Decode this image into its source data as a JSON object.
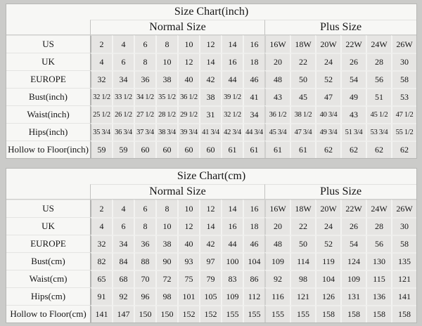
{
  "colors": {
    "page_bg": "#cbcbc9",
    "panel_bg": "#f7f7f5",
    "cell_bg": "#e6e5e3",
    "text": "#151515"
  },
  "layout_labels": {
    "normal_columns": 8,
    "plus_columns": 6
  },
  "tables": [
    {
      "title": "Size Chart(inch)",
      "normal_label": "Normal Size",
      "plus_label": "Plus Size",
      "rows": [
        {
          "label": "US",
          "values": [
            "2",
            "4",
            "6",
            "8",
            "10",
            "12",
            "14",
            "16",
            "16W",
            "18W",
            "20W",
            "22W",
            "24W",
            "26W"
          ]
        },
        {
          "label": "UK",
          "values": [
            "4",
            "6",
            "8",
            "10",
            "12",
            "14",
            "16",
            "18",
            "20",
            "22",
            "24",
            "26",
            "28",
            "30"
          ]
        },
        {
          "label": "EUROPE",
          "values": [
            "32",
            "34",
            "36",
            "38",
            "40",
            "42",
            "44",
            "46",
            "48",
            "50",
            "52",
            "54",
            "56",
            "58"
          ]
        },
        {
          "label": "Bust(inch)",
          "values": [
            "32 1/2",
            "33 1/2",
            "34 1/2",
            "35 1/2",
            "36 1/2",
            "38",
            "39 1/2",
            "41",
            "43",
            "45",
            "47",
            "49",
            "51",
            "53"
          ]
        },
        {
          "label": "Waist(inch)",
          "values": [
            "25 1/2",
            "26 1/2",
            "27 1/2",
            "28 1/2",
            "29 1/2",
            "31",
            "32 1/2",
            "34",
            "36 1/2",
            "38 1/2",
            "40 3/4",
            "43",
            "45 1/2",
            "47 1/2"
          ]
        },
        {
          "label": "Hips(inch)",
          "values": [
            "35 3/4",
            "36 3/4",
            "37 3/4",
            "38 3/4",
            "39 3/4",
            "41 3/4",
            "42 3/4",
            "44 3/4",
            "45 3/4",
            "47 3/4",
            "49 3/4",
            "51 3/4",
            "53 3/4",
            "55 1/2"
          ]
        },
        {
          "label": "Hollow to Floor(inch)",
          "values": [
            "59",
            "59",
            "60",
            "60",
            "60",
            "60",
            "61",
            "61",
            "61",
            "61",
            "62",
            "62",
            "62",
            "62"
          ]
        }
      ]
    },
    {
      "title": "Size Chart(cm)",
      "normal_label": "Normal Size",
      "plus_label": "Plus Size",
      "rows": [
        {
          "label": "US",
          "values": [
            "2",
            "4",
            "6",
            "8",
            "10",
            "12",
            "14",
            "16",
            "16W",
            "18W",
            "20W",
            "22W",
            "24W",
            "26W"
          ]
        },
        {
          "label": "UK",
          "values": [
            "4",
            "6",
            "8",
            "10",
            "12",
            "14",
            "16",
            "18",
            "20",
            "22",
            "24",
            "26",
            "28",
            "30"
          ]
        },
        {
          "label": "EUROPE",
          "values": [
            "32",
            "34",
            "36",
            "38",
            "40",
            "42",
            "44",
            "46",
            "48",
            "50",
            "52",
            "54",
            "56",
            "58"
          ]
        },
        {
          "label": "Bust(cm)",
          "values": [
            "82",
            "84",
            "88",
            "90",
            "93",
            "97",
            "100",
            "104",
            "109",
            "114",
            "119",
            "124",
            "130",
            "135"
          ]
        },
        {
          "label": "Waist(cm)",
          "values": [
            "65",
            "68",
            "70",
            "72",
            "75",
            "79",
            "83",
            "86",
            "92",
            "98",
            "104",
            "109",
            "115",
            "121"
          ]
        },
        {
          "label": "Hips(cm)",
          "values": [
            "91",
            "92",
            "96",
            "98",
            "101",
            "105",
            "109",
            "112",
            "116",
            "121",
            "126",
            "131",
            "136",
            "141"
          ]
        },
        {
          "label": "Hollow to Floor(cm)",
          "values": [
            "141",
            "147",
            "150",
            "150",
            "152",
            "152",
            "155",
            "155",
            "155",
            "155",
            "158",
            "158",
            "158",
            "158"
          ]
        }
      ]
    }
  ]
}
